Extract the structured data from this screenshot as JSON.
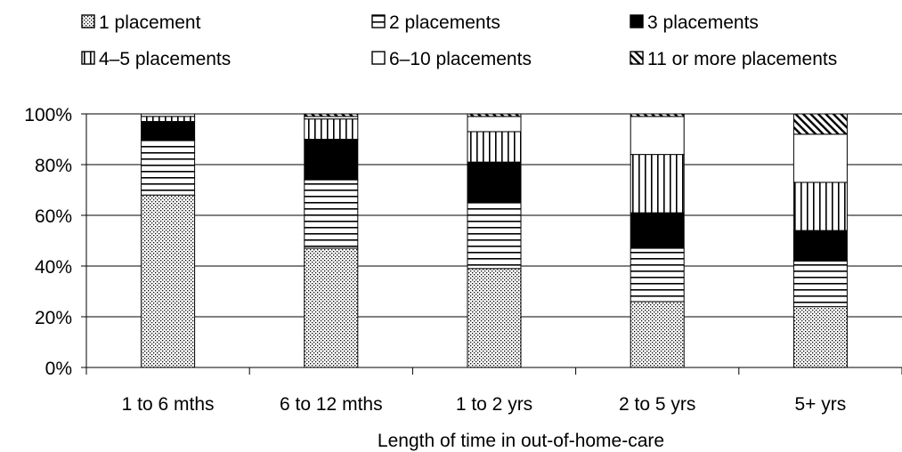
{
  "chart_data": {
    "type": "bar",
    "stacked": true,
    "percent": true,
    "title": "",
    "xlabel": "Length of time in out-of-home-care",
    "ylabel": "",
    "ylim": [
      0,
      100
    ],
    "yticks": [
      "0%",
      "20%",
      "40%",
      "60%",
      "80%",
      "100%"
    ],
    "legend_position": "top",
    "grid": true,
    "categories": [
      "1 to 6 mths",
      "6 to 12 mths",
      "1 to 2 yrs",
      "2 to 5 yrs",
      "5+ yrs"
    ],
    "series": [
      {
        "name": "1 placement",
        "pattern": "dots",
        "values": [
          68,
          47,
          39,
          26,
          24
        ]
      },
      {
        "name": "2 placements",
        "pattern": "horizontal-lines",
        "values": [
          22,
          27,
          26,
          21,
          18
        ]
      },
      {
        "name": "3 placements",
        "pattern": "solid-black",
        "values": [
          7,
          16,
          16,
          14,
          12
        ]
      },
      {
        "name": "4–5 placements",
        "pattern": "vertical-lines",
        "values": [
          2,
          8,
          12,
          23,
          19
        ]
      },
      {
        "name": "6–10 placements",
        "pattern": "white",
        "values": [
          1,
          1,
          6,
          15,
          19
        ]
      },
      {
        "name": "11 or more placements",
        "pattern": "diagonal-lines",
        "values": [
          0,
          1,
          1,
          1,
          8
        ]
      }
    ]
  }
}
